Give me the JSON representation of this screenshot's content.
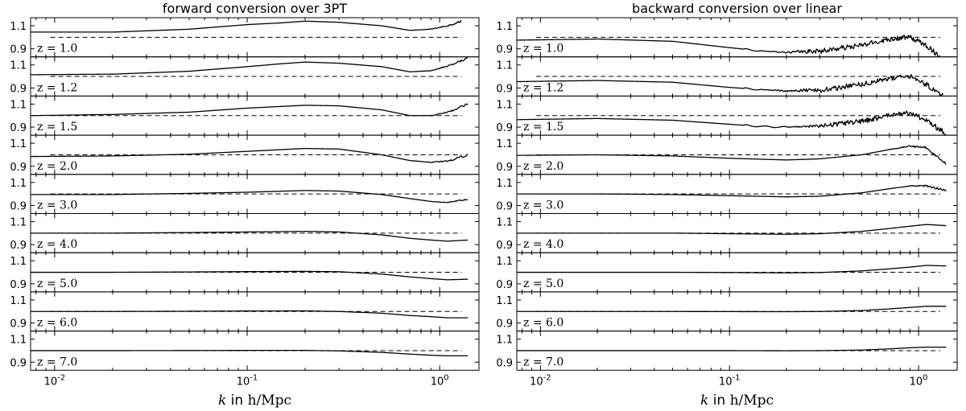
{
  "chart_data": [
    {
      "type": "line",
      "title": "forward conversion over 3PT",
      "xlabel_var": "k",
      "xlabel_word": "in",
      "xlabel_unit": "h/Mpc",
      "x_scale": "log",
      "xlim": [
        0.0075,
        1.6
      ],
      "x_tick_labels": [
        "10-2",
        "10-1",
        "100"
      ],
      "ylim": [
        0.83,
        1.17
      ],
      "y_tick_labels": [
        "1.1",
        "0.9"
      ],
      "reference_value": 1.0,
      "reference_style": "dashed",
      "panels": [
        {
          "label": "z = 1.0",
          "z": "1.0",
          "k": [
            0.0075,
            0.02,
            0.05,
            0.1,
            0.15,
            0.2,
            0.3,
            0.5,
            0.7,
            0.9,
            1.1,
            1.3
          ],
          "ratio": [
            1.045,
            1.045,
            1.07,
            1.11,
            1.125,
            1.14,
            1.13,
            1.1,
            1.06,
            1.07,
            1.1,
            1.14
          ],
          "noise_from": 0.75
        },
        {
          "label": "z = 1.2",
          "z": "1.2",
          "k": [
            0.0075,
            0.02,
            0.05,
            0.1,
            0.15,
            0.2,
            0.3,
            0.5,
            0.7,
            0.9,
            1.1,
            1.4
          ],
          "ratio": [
            1.015,
            1.02,
            1.045,
            1.085,
            1.11,
            1.125,
            1.115,
            1.085,
            1.04,
            1.05,
            1.09,
            1.16
          ],
          "noise_from": 0.75
        },
        {
          "label": "z = 1.5",
          "z": "1.5",
          "k": [
            0.0075,
            0.02,
            0.05,
            0.1,
            0.2,
            0.3,
            0.5,
            0.7,
            0.9,
            1.1,
            1.4
          ],
          "ratio": [
            1.0,
            1.01,
            1.03,
            1.065,
            1.09,
            1.085,
            1.05,
            1.0,
            1.0,
            1.03,
            1.1
          ],
          "noise_from": 0.75
        },
        {
          "label": "z = 2.0",
          "z": "2.0",
          "k": [
            0.0075,
            0.02,
            0.05,
            0.1,
            0.2,
            0.3,
            0.5,
            0.7,
            0.9,
            1.1,
            1.4
          ],
          "ratio": [
            0.985,
            0.99,
            1.005,
            1.03,
            1.055,
            1.05,
            1.0,
            0.95,
            0.935,
            0.945,
            1.0
          ],
          "noise_from": 0.75
        },
        {
          "label": "z = 3.0",
          "z": "3.0",
          "k": [
            0.0075,
            0.02,
            0.05,
            0.1,
            0.2,
            0.3,
            0.5,
            0.7,
            0.9,
            1.1,
            1.4
          ],
          "ratio": [
            0.995,
            0.995,
            1.005,
            1.015,
            1.03,
            1.025,
            0.995,
            0.96,
            0.935,
            0.925,
            0.955
          ],
          "noise_from": 0.9
        },
        {
          "label": "z = 4.0",
          "z": "4.0",
          "k": [
            0.0075,
            0.02,
            0.05,
            0.1,
            0.2,
            0.3,
            0.5,
            0.7,
            0.9,
            1.1,
            1.4
          ],
          "ratio": [
            1.0,
            1.0,
            1.005,
            1.01,
            1.015,
            1.01,
            0.985,
            0.955,
            0.94,
            0.93,
            0.94
          ],
          "noise_from": 2
        },
        {
          "label": "z = 5.0",
          "z": "5.0",
          "k": [
            0.0075,
            0.02,
            0.05,
            0.1,
            0.2,
            0.3,
            0.5,
            0.7,
            0.9,
            1.1,
            1.4
          ],
          "ratio": [
            1.0,
            1.0,
            1.003,
            1.006,
            1.008,
            1.005,
            0.985,
            0.96,
            0.945,
            0.935,
            0.94
          ],
          "noise_from": 2
        },
        {
          "label": "z = 6.0",
          "z": "6.0",
          "k": [
            0.0075,
            0.02,
            0.05,
            0.1,
            0.2,
            0.3,
            0.5,
            0.7,
            0.9,
            1.1,
            1.4
          ],
          "ratio": [
            1.0,
            1.0,
            1.002,
            1.004,
            1.005,
            1.0,
            0.985,
            0.965,
            0.955,
            0.945,
            0.945
          ],
          "noise_from": 2
        },
        {
          "label": "z = 7.0",
          "z": "7.0",
          "k": [
            0.0075,
            0.02,
            0.05,
            0.1,
            0.2,
            0.3,
            0.5,
            0.7,
            0.9,
            1.1,
            1.4
          ],
          "ratio": [
            1.0,
            1.0,
            1.001,
            1.002,
            1.002,
            0.998,
            0.985,
            0.97,
            0.96,
            0.955,
            0.955
          ],
          "noise_from": 2
        }
      ]
    },
    {
      "type": "line",
      "title": "backward conversion over linear",
      "xlabel_var": "k",
      "xlabel_word": "in",
      "xlabel_unit": "h/Mpc",
      "x_scale": "log",
      "xlim": [
        0.0075,
        1.6
      ],
      "x_tick_labels": [
        "10-2",
        "10-1",
        "100"
      ],
      "ylim": [
        0.83,
        1.17
      ],
      "y_tick_labels": [
        "1.1",
        "0.9"
      ],
      "reference_value": 1.0,
      "reference_style": "dashed",
      "panels": [
        {
          "label": "z = 1.0",
          "z": "1.0",
          "k": [
            0.0075,
            0.02,
            0.05,
            0.1,
            0.15,
            0.2,
            0.3,
            0.5,
            0.7,
            0.9,
            1.1,
            1.3
          ],
          "ratio": [
            0.975,
            0.985,
            0.965,
            0.91,
            0.88,
            0.87,
            0.88,
            0.93,
            0.985,
            1.0,
            0.93,
            0.83
          ],
          "noise_from": 0.15
        },
        {
          "label": "z = 1.2",
          "z": "1.2",
          "k": [
            0.0075,
            0.02,
            0.05,
            0.1,
            0.15,
            0.2,
            0.3,
            0.5,
            0.7,
            0.9,
            1.1,
            1.35
          ],
          "ratio": [
            0.955,
            0.965,
            0.95,
            0.905,
            0.885,
            0.875,
            0.88,
            0.93,
            0.985,
            1.0,
            0.93,
            0.83
          ],
          "noise_from": 0.15
        },
        {
          "label": "z = 1.5",
          "z": "1.5",
          "k": [
            0.0075,
            0.02,
            0.05,
            0.1,
            0.15,
            0.2,
            0.3,
            0.5,
            0.7,
            0.9,
            1.1,
            1.4
          ],
          "ratio": [
            0.965,
            0.975,
            0.96,
            0.925,
            0.905,
            0.9,
            0.91,
            0.95,
            1.0,
            1.025,
            0.96,
            0.84
          ],
          "noise_from": 0.2
        },
        {
          "label": "z = 2.0",
          "z": "2.0",
          "k": [
            0.0075,
            0.02,
            0.05,
            0.1,
            0.2,
            0.3,
            0.5,
            0.7,
            0.9,
            1.1,
            1.4
          ],
          "ratio": [
            0.995,
            1.0,
            0.99,
            0.97,
            0.955,
            0.965,
            1.0,
            1.045,
            1.075,
            1.06,
            0.92
          ],
          "noise_from": 0.6
        },
        {
          "label": "z = 3.0",
          "z": "3.0",
          "k": [
            0.0075,
            0.02,
            0.05,
            0.1,
            0.2,
            0.3,
            0.5,
            0.7,
            0.9,
            1.1,
            1.4
          ],
          "ratio": [
            1.0,
            1.0,
            0.995,
            0.985,
            0.975,
            0.98,
            1.01,
            1.045,
            1.07,
            1.07,
            1.03
          ],
          "noise_from": 0.7
        },
        {
          "label": "z = 4.0",
          "z": "4.0",
          "k": [
            0.0075,
            0.02,
            0.05,
            0.1,
            0.2,
            0.3,
            0.5,
            0.7,
            0.9,
            1.1,
            1.4
          ],
          "ratio": [
            1.0,
            1.0,
            1.0,
            0.995,
            0.99,
            0.995,
            1.015,
            1.04,
            1.06,
            1.075,
            1.065
          ],
          "noise_from": 2
        },
        {
          "label": "z = 5.0",
          "z": "5.0",
          "k": [
            0.0075,
            0.02,
            0.05,
            0.1,
            0.2,
            0.3,
            0.5,
            0.7,
            0.9,
            1.1,
            1.4
          ],
          "ratio": [
            1.0,
            1.0,
            1.0,
            0.998,
            0.995,
            0.998,
            1.012,
            1.03,
            1.045,
            1.06,
            1.055
          ],
          "noise_from": 2
        },
        {
          "label": "z = 6.0",
          "z": "6.0",
          "k": [
            0.0075,
            0.02,
            0.05,
            0.1,
            0.2,
            0.3,
            0.5,
            0.7,
            0.9,
            1.1,
            1.4
          ],
          "ratio": [
            1.0,
            1.0,
            1.0,
            0.999,
            0.998,
            1.0,
            1.008,
            1.022,
            1.035,
            1.045,
            1.045
          ],
          "noise_from": 2
        },
        {
          "label": "z = 7.0",
          "z": "7.0",
          "k": [
            0.0075,
            0.02,
            0.05,
            0.1,
            0.2,
            0.3,
            0.5,
            0.7,
            0.9,
            1.1,
            1.4
          ],
          "ratio": [
            1.0,
            1.0,
            1.0,
            1.0,
            0.999,
            1.0,
            1.005,
            1.015,
            1.025,
            1.03,
            1.03
          ],
          "noise_from": 2
        }
      ]
    }
  ]
}
